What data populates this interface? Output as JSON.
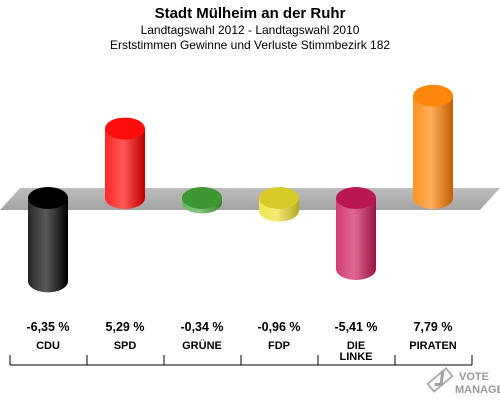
{
  "chart_data": {
    "type": "bar",
    "title": "Stadt Mülheim an der Ruhr",
    "subtitle_1": "Landtagswahl 2012 - Landtagswahl 2010",
    "subtitle_2": "Erststimmen Gewinne und Verluste Stimmbezirk 182",
    "categories": [
      "CDU",
      "SPD",
      "GRÜNE",
      "FDP",
      "DIE LINKE",
      "PIRATEN"
    ],
    "category_lines": [
      [
        "CDU"
      ],
      [
        "SPD"
      ],
      [
        "GRÜNE"
      ],
      [
        "FDP"
      ],
      [
        "DIE",
        "LINKE"
      ],
      [
        "PIRATEN"
      ]
    ],
    "values": [
      -6.35,
      5.29,
      -0.34,
      -0.96,
      -5.41,
      7.79
    ],
    "value_labels": [
      "-6,35 %",
      "5,29 %",
      "-0,34 %",
      "-0,96 %",
      "-5,41 %",
      "7,79 %"
    ],
    "colors": [
      "#000000",
      "#ff0000",
      "#46a83a",
      "#f0e02c",
      "#cc1a5a",
      "#ff8000"
    ],
    "ylim": [
      -8,
      8
    ],
    "grid": false,
    "legend": "none"
  },
  "watermark": {
    "line1": "VOTE",
    "line2": "MANAGER"
  }
}
